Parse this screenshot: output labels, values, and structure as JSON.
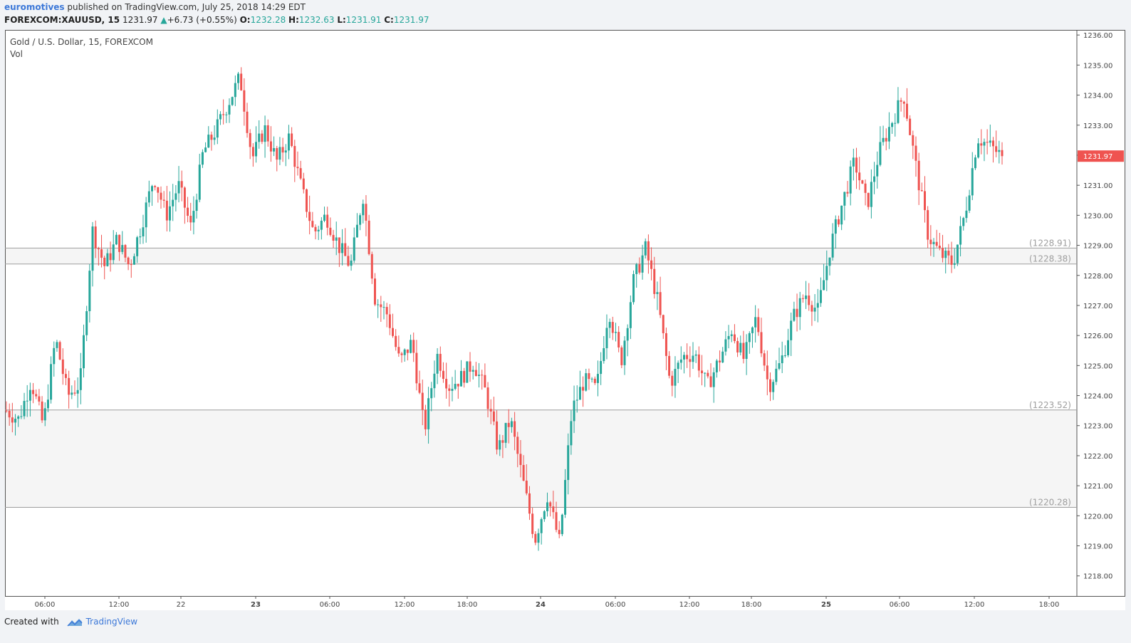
{
  "header": {
    "author": "euromotives",
    "published_text": "published on TradingView.com, July 25, 2018 14:29 EDT",
    "symbol": "FOREXCOM:XAUUSD, 15",
    "last": "1231.97",
    "change": "+6.73 (+0.55%)",
    "o_label": "O:",
    "o_value": "1232.28",
    "h_label": "H:",
    "h_value": "1232.63",
    "l_label": "L:",
    "l_value": "1231.91",
    "c_label": "C:",
    "c_value": "1231.97"
  },
  "legend": {
    "title": "Gold / U.S. Dollar, 15, FOREXCOM",
    "vol": "Vol"
  },
  "footer": {
    "created_with": "Created with",
    "brand": "TradingView"
  },
  "colors": {
    "up": "#26a69a",
    "down": "#ef5350",
    "last_price_bg": "#ef5350",
    "hline": "#9e9e9e"
  },
  "chart_data": {
    "type": "candlestick",
    "title": "Gold / U.S. Dollar, 15, FOREXCOM",
    "y_range": [
      1217.33,
      1236.17
    ],
    "y_ticks": [
      "1236.00",
      "1235.00",
      "1234.00",
      "1233.00",
      "1232.00",
      "1231.00",
      "1230.00",
      "1229.00",
      "1228.00",
      "1227.00",
      "1226.00",
      "1225.00",
      "1224.00",
      "1223.00",
      "1222.00",
      "1221.00",
      "1220.00",
      "1219.00",
      "1218.00"
    ],
    "x_ticks": [
      "06:00",
      "12:00",
      "22",
      "23",
      "06:00",
      "12:00",
      "18:00",
      "24",
      "06:00",
      "12:00",
      "18:00",
      "25",
      "06:00",
      "12:00",
      "18:00"
    ],
    "last_price": "1231.97",
    "horizontal_lines": [
      {
        "label": "(1228.91)",
        "value": 1228.91
      },
      {
        "label": "(1228.38)",
        "value": 1228.38
      },
      {
        "label": "(1223.52)",
        "value": 1223.52
      },
      {
        "label": "(1220.28)",
        "value": 1220.28
      }
    ],
    "shaded_zones": [
      {
        "from": 1228.38,
        "to": 1228.91
      },
      {
        "from": 1220.28,
        "to": 1223.52
      }
    ],
    "price_path": [
      1223.5,
      1223.2,
      1224.5,
      1223.0,
      1225.9,
      1224.0,
      1224.4,
      1229.5,
      1228.3,
      1229.2,
      1228.3,
      1229.7,
      1231.3,
      1230.0,
      1231.0,
      1229.6,
      1232.1,
      1232.8,
      1233.7,
      1234.6,
      1231.9,
      1232.9,
      1231.8,
      1232.6,
      1230.9,
      1229.4,
      1230.0,
      1229.0,
      1228.3,
      1230.7,
      1227.2,
      1226.7,
      1225.1,
      1225.8,
      1222.8,
      1225.4,
      1224.3,
      1224.6,
      1225.1,
      1224.1,
      1222.2,
      1223.2,
      1221.2,
      1219.2,
      1220.7,
      1219.1,
      1223.5,
      1224.5,
      1224.2,
      1226.9,
      1225.1,
      1227.8,
      1228.9,
      1227.1,
      1224.4,
      1225.3,
      1225.4,
      1224.3,
      1225.2,
      1226.2,
      1225.2,
      1226.6,
      1224.3,
      1225.1,
      1226.6,
      1227.4,
      1226.8,
      1228.9,
      1230.4,
      1231.8,
      1230.3,
      1232.1,
      1233.1,
      1234.0,
      1231.6,
      1229.3,
      1228.7,
      1228.4,
      1230.1,
      1232.6,
      1232.3,
      1231.97
    ]
  }
}
